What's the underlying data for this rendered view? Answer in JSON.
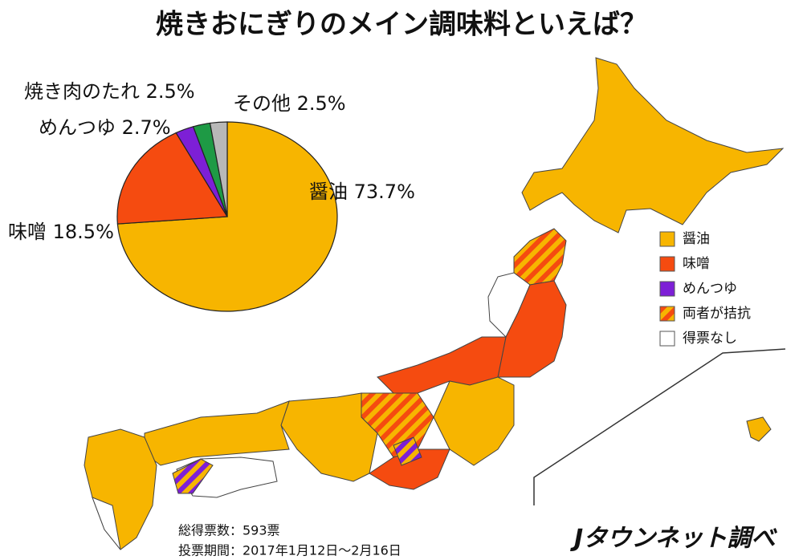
{
  "chart_data": {
    "type": "pie",
    "title": "焼きおにぎりのメイン調味料といえば？",
    "categories": [
      "醤油",
      "味噌",
      "めんつゆ",
      "焼き肉のたれ",
      "その他"
    ],
    "values": [
      73.7,
      18.5,
      2.7,
      2.5,
      2.5
    ],
    "value_labels": [
      "73.7%",
      "18.5%",
      "2.7%",
      "2.5%",
      "2.5%"
    ],
    "colors": [
      "#F7B500",
      "#F54B10",
      "#7D1FD6",
      "#1E9A45",
      "#B8B8B8"
    ]
  },
  "map": {
    "legend": [
      "醤油",
      "味噌",
      "めんつゆ",
      "両者が拮抗",
      "得票なし"
    ],
    "colors": [
      "#F7B500",
      "#F54B10",
      "#7D1FD6",
      "hatch",
      "#FFFFFF"
    ]
  },
  "notes": [
    "総得票数：593票",
    "投票期間：2017年1月12日～2月16日"
  ],
  "credit": "Jタウンネット調べ"
}
